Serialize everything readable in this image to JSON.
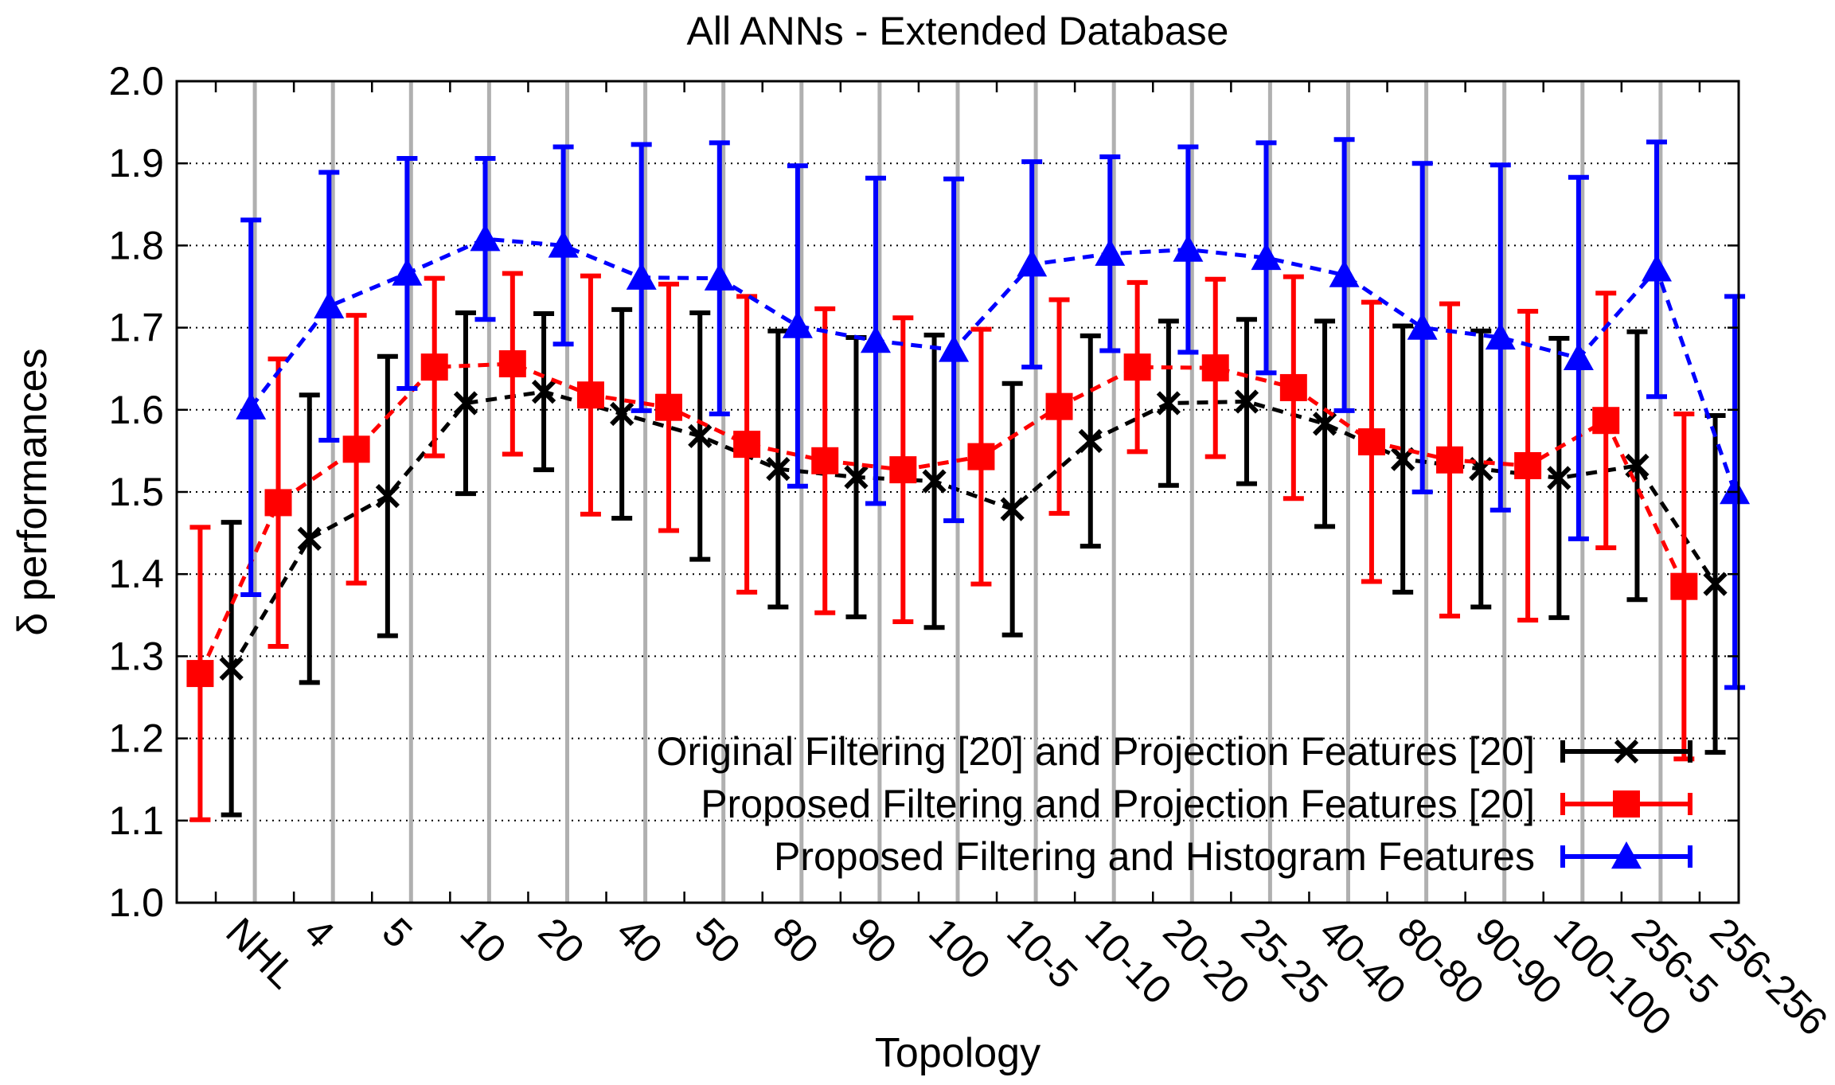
{
  "chart_data": {
    "type": "line",
    "title": "All ANNs - Extended Database",
    "xlabel": "Topology",
    "ylabel": "δ performances",
    "ylim": [
      1.0,
      2.0
    ],
    "yticks": [
      "1.0",
      "1.1",
      "1.2",
      "1.3",
      "1.4",
      "1.5",
      "1.6",
      "1.7",
      "1.8",
      "1.9",
      "2.0"
    ],
    "grid": true,
    "legend_position": "bottom-right",
    "categories": [
      "NHL",
      "4",
      "5",
      "10",
      "20",
      "40",
      "50",
      "80",
      "90",
      "100",
      "10-5",
      "10-10",
      "20-20",
      "25-25",
      "40-40",
      "80-80",
      "90-90",
      "100-100",
      "256-5",
      "256-256"
    ],
    "series": [
      {
        "name": "Original Filtering [20] and Projection Features [20]",
        "color": "#000000",
        "marker": "cross",
        "values": [
          1.285,
          1.443,
          1.495,
          1.608,
          1.622,
          1.595,
          1.568,
          1.528,
          1.518,
          1.513,
          1.479,
          1.562,
          1.608,
          1.61,
          1.583,
          1.54,
          1.528,
          1.517,
          1.532,
          1.388
        ],
        "errors": [
          0.178,
          0.175,
          0.17,
          0.11,
          0.095,
          0.127,
          0.15,
          0.168,
          0.17,
          0.178,
          0.153,
          0.128,
          0.1,
          0.1,
          0.125,
          0.162,
          0.168,
          0.17,
          0.163,
          0.205
        ]
      },
      {
        "name": "Proposed Filtering and Projection Features [20]",
        "color": "#ff0000",
        "marker": "square",
        "values": [
          1.279,
          1.487,
          1.552,
          1.652,
          1.656,
          1.618,
          1.603,
          1.558,
          1.538,
          1.527,
          1.543,
          1.604,
          1.652,
          1.651,
          1.627,
          1.561,
          1.539,
          1.532,
          1.587,
          1.385
        ],
        "errors": [
          0.178,
          0.175,
          0.163,
          0.108,
          0.11,
          0.145,
          0.15,
          0.18,
          0.185,
          0.185,
          0.155,
          0.13,
          0.103,
          0.108,
          0.135,
          0.17,
          0.19,
          0.188,
          0.155,
          0.21
        ]
      },
      {
        "name": "Proposed Filtering and Histogram Features",
        "color": "#0000ff",
        "marker": "triangle",
        "values": [
          1.603,
          1.726,
          1.766,
          1.808,
          1.8,
          1.761,
          1.76,
          1.702,
          1.684,
          1.673,
          1.777,
          1.79,
          1.795,
          1.785,
          1.764,
          1.7,
          1.688,
          1.663,
          1.771,
          1.5
        ],
        "errors": [
          0.228,
          0.163,
          0.14,
          0.098,
          0.12,
          0.162,
          0.165,
          0.195,
          0.198,
          0.208,
          0.125,
          0.118,
          0.125,
          0.14,
          0.165,
          0.2,
          0.21,
          0.22,
          0.155,
          0.238
        ]
      }
    ]
  }
}
